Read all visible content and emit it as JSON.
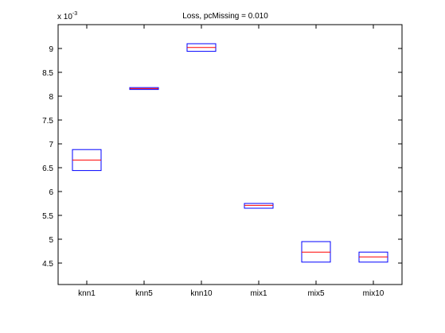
{
  "chart_data": {
    "type": "box",
    "title": "Loss, pcMissing = 0.010",
    "xlabel": "",
    "ylabel": "",
    "y_multiplier": "x 10",
    "y_multiplier_exponent": "-3",
    "ylim": [
      4.05,
      9.5
    ],
    "yticks": [
      4.5,
      5,
      5.5,
      6,
      6.5,
      7,
      7.5,
      8,
      8.5,
      9
    ],
    "ytick_labels": [
      "4.5",
      "5",
      "5.5",
      "6",
      "6.5",
      "7",
      "7.5",
      "8",
      "8.5",
      "9"
    ],
    "categories": [
      "knn1",
      "knn5",
      "knn10",
      "mix1",
      "mix5",
      "mix10"
    ],
    "boxes": [
      {
        "q1": 6.44,
        "median": 6.66,
        "q3": 6.88
      },
      {
        "q1": 8.14,
        "median": 8.16,
        "q3": 8.18
      },
      {
        "q1": 8.94,
        "median": 9.02,
        "q3": 9.1
      },
      {
        "q1": 5.65,
        "median": 5.71,
        "q3": 5.75
      },
      {
        "q1": 4.52,
        "median": 4.73,
        "q3": 4.95
      },
      {
        "q1": 4.52,
        "median": 4.63,
        "q3": 4.73
      }
    ],
    "grid": false,
    "colors": {
      "box": "#0000ff",
      "median": "#ff0000",
      "axes": "#000000"
    }
  }
}
